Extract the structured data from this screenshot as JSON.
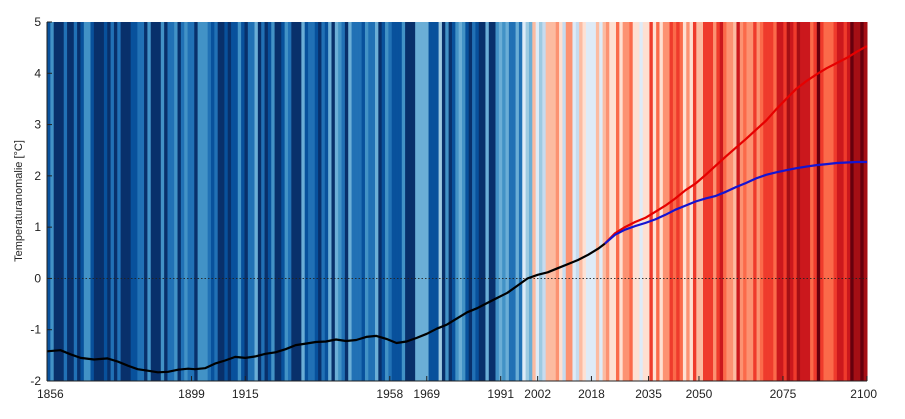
{
  "chart_data": {
    "type": "line",
    "ylabel": "Temperaturanomalie [°C]",
    "xlim": [
      1856,
      2100
    ],
    "ylim": [
      -2,
      5
    ],
    "x_ticks": [
      1856,
      1899,
      1915,
      1958,
      1969,
      1991,
      2002,
      2018,
      2035,
      2050,
      2075,
      2100
    ],
    "y_ticks": [
      -2,
      -1,
      0,
      1,
      2,
      3,
      4,
      5
    ],
    "reference_line": {
      "y": 0,
      "style": "dotted"
    },
    "background": "warming stripes (annual anomaly colour bands, blue = cold, red = warm)",
    "series": [
      {
        "color": "#000000",
        "x": [
          1856,
          1860,
          1863,
          1866,
          1870,
          1874,
          1877,
          1880,
          1883,
          1886,
          1889,
          1892,
          1895,
          1898,
          1900,
          1903,
          1906,
          1909,
          1912,
          1915,
          1918,
          1921,
          1924,
          1927,
          1930,
          1933,
          1936,
          1939,
          1942,
          1945,
          1948,
          1951,
          1954,
          1957,
          1960,
          1963,
          1966,
          1969,
          1972,
          1975,
          1978,
          1981,
          1984,
          1987,
          1990,
          1993,
          1996,
          1999,
          2002,
          2005,
          2008,
          2011,
          2014,
          2017,
          2020,
          2022
        ],
        "y": [
          -1.42,
          -1.4,
          -1.48,
          -1.55,
          -1.58,
          -1.56,
          -1.62,
          -1.7,
          -1.77,
          -1.8,
          -1.83,
          -1.82,
          -1.78,
          -1.76,
          -1.77,
          -1.75,
          -1.66,
          -1.6,
          -1.53,
          -1.55,
          -1.52,
          -1.47,
          -1.44,
          -1.38,
          -1.3,
          -1.27,
          -1.24,
          -1.23,
          -1.19,
          -1.22,
          -1.2,
          -1.14,
          -1.12,
          -1.18,
          -1.26,
          -1.23,
          -1.16,
          -1.08,
          -0.98,
          -0.9,
          -0.78,
          -0.66,
          -0.58,
          -0.48,
          -0.38,
          -0.28,
          -0.14,
          0.0,
          0.07,
          0.12,
          0.2,
          0.28,
          0.36,
          0.46,
          0.58,
          0.68
        ]
      },
      {
        "color": "#e60000",
        "x": [
          2022,
          2025,
          2028,
          2031,
          2034,
          2037,
          2040,
          2043,
          2046,
          2049,
          2052,
          2055,
          2058,
          2061,
          2064,
          2067,
          2070,
          2073,
          2076,
          2079,
          2082,
          2085,
          2088,
          2091,
          2094,
          2097,
          2100
        ],
        "y": [
          0.68,
          0.88,
          1.0,
          1.1,
          1.18,
          1.3,
          1.42,
          1.56,
          1.72,
          1.85,
          2.02,
          2.2,
          2.38,
          2.55,
          2.72,
          2.9,
          3.08,
          3.3,
          3.5,
          3.7,
          3.85,
          3.98,
          4.1,
          4.2,
          4.3,
          4.42,
          4.53
        ]
      },
      {
        "color": "#1414d2",
        "x": [
          2022,
          2025,
          2028,
          2031,
          2034,
          2037,
          2040,
          2043,
          2046,
          2049,
          2052,
          2055,
          2058,
          2061,
          2064,
          2067,
          2070,
          2073,
          2076,
          2079,
          2082,
          2085,
          2088,
          2091,
          2094,
          2097,
          2100
        ],
        "y": [
          0.68,
          0.85,
          0.95,
          1.02,
          1.08,
          1.15,
          1.24,
          1.34,
          1.42,
          1.5,
          1.56,
          1.61,
          1.69,
          1.78,
          1.86,
          1.95,
          2.02,
          2.07,
          2.11,
          2.15,
          2.18,
          2.21,
          2.23,
          2.25,
          2.26,
          2.27,
          2.27
        ]
      }
    ]
  }
}
